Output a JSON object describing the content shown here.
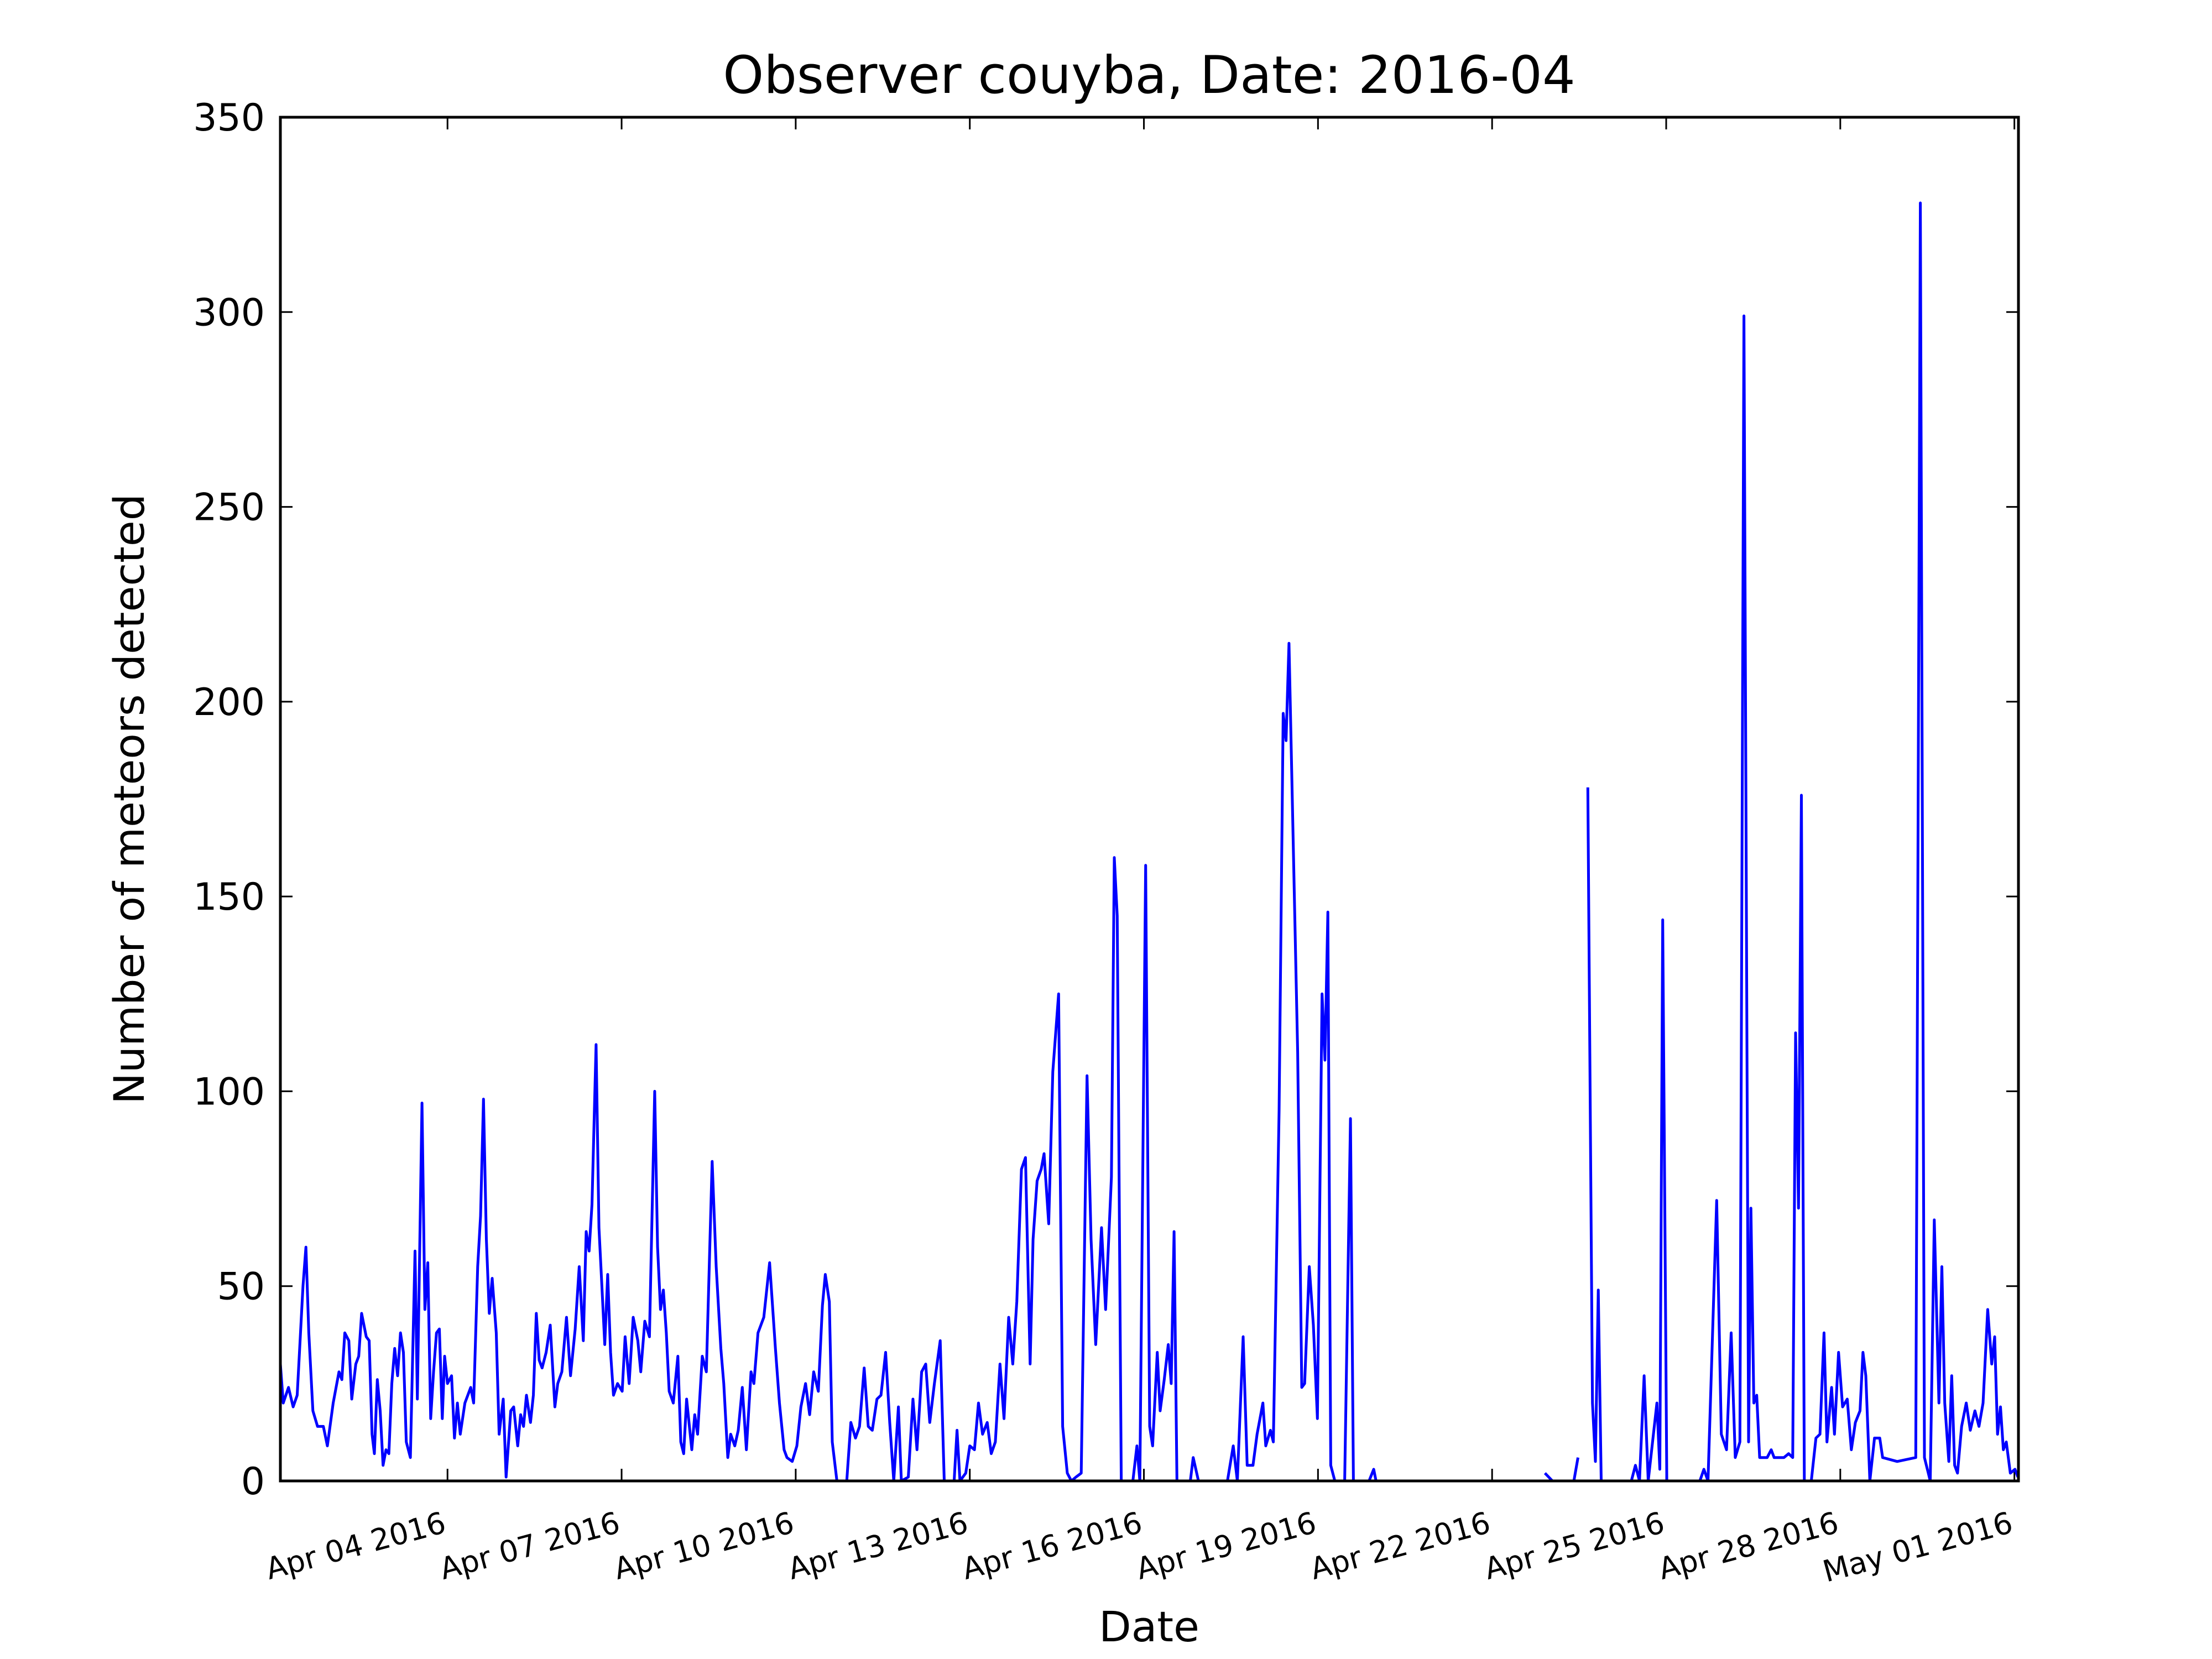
{
  "chart_data": {
    "type": "line",
    "title": "Observer couyba, Date: 2016-04",
    "xlabel": "Date",
    "ylabel": "Number of meteors detected",
    "color": "#0000ff",
    "xlim": [
      1.12,
      31.07
    ],
    "ylim": [
      0,
      350
    ],
    "xticks": [
      {
        "value": 4,
        "label": "Apr 04 2016"
      },
      {
        "value": 7,
        "label": "Apr 07 2016"
      },
      {
        "value": 10,
        "label": "Apr 10 2016"
      },
      {
        "value": 13,
        "label": "Apr 13 2016"
      },
      {
        "value": 16,
        "label": "Apr 16 2016"
      },
      {
        "value": 19,
        "label": "Apr 19 2016"
      },
      {
        "value": 22,
        "label": "Apr 22 2016"
      },
      {
        "value": 25,
        "label": "Apr 25 2016"
      },
      {
        "value": 28,
        "label": "Apr 28 2016"
      },
      {
        "value": 31,
        "label": "May 01 2016"
      }
    ],
    "yticks": [
      0,
      50,
      100,
      150,
      200,
      250,
      300,
      350
    ],
    "x": [
      1.12,
      1.17,
      1.26,
      1.34,
      1.41,
      1.51,
      1.56,
      1.61,
      1.68,
      1.76,
      1.86,
      1.93,
      2.03,
      2.13,
      2.18,
      2.23,
      2.3,
      2.35,
      2.42,
      2.47,
      2.52,
      2.6,
      2.65,
      2.7,
      2.74,
      2.79,
      2.84,
      2.89,
      2.94,
      2.99,
      3.04,
      3.09,
      3.14,
      3.19,
      3.24,
      3.29,
      3.36,
      3.44,
      3.48,
      3.56,
      3.61,
      3.66,
      3.71,
      3.76,
      3.81,
      3.86,
      3.91,
      3.95,
      4.0,
      4.07,
      4.12,
      4.17,
      4.22,
      4.3,
      4.4,
      4.45,
      4.52,
      4.57,
      4.62,
      4.67,
      4.72,
      4.77,
      4.84,
      4.89,
      4.96,
      5.01,
      5.09,
      5.14,
      5.21,
      5.26,
      5.31,
      5.36,
      5.43,
      5.48,
      5.53,
      5.58,
      5.63,
      5.7,
      5.77,
      5.85,
      5.9,
      5.97,
      6.05,
      6.12,
      6.2,
      6.27,
      6.34,
      6.39,
      6.44,
      6.49,
      6.56,
      6.61,
      6.66,
      6.71,
      6.76,
      6.81,
      6.86,
      6.93,
      7.01,
      7.06,
      7.13,
      7.2,
      7.28,
      7.33,
      7.4,
      7.48,
      7.57,
      7.62,
      7.67,
      7.72,
      7.77,
      7.82,
      7.89,
      7.97,
      8.02,
      8.07,
      8.12,
      8.21,
      8.26,
      8.31,
      8.39,
      8.46,
      8.56,
      8.63,
      8.71,
      8.76,
      8.83,
      8.88,
      8.95,
      9.01,
      9.08,
      9.15,
      9.23,
      9.28,
      9.35,
      9.45,
      9.55,
      9.65,
      9.72,
      9.8,
      9.85,
      9.94,
      10.02,
      10.09,
      10.17,
      10.24,
      10.31,
      10.39,
      10.46,
      10.51,
      10.58,
      10.63,
      10.71,
      10.88,
      10.95,
      11.03,
      11.1,
      11.18,
      11.25,
      11.32,
      11.4,
      11.47,
      11.55,
      11.62,
      11.69,
      11.77,
      11.82,
      11.94,
      12.02,
      12.09,
      12.17,
      12.24,
      12.31,
      12.39,
      12.49,
      12.56,
      12.73,
      12.78,
      12.83,
      12.93,
      13.0,
      13.08,
      13.15,
      13.22,
      13.3,
      13.37,
      13.44,
      13.52,
      13.59,
      13.67,
      13.74,
      13.81,
      13.89,
      13.96,
      14.04,
      14.09,
      14.16,
      14.23,
      14.28,
      14.36,
      14.43,
      14.53,
      14.6,
      14.68,
      14.75,
      14.83,
      14.92,
      15.02,
      15.09,
      15.17,
      15.27,
      15.34,
      15.44,
      15.49,
      15.54,
      15.61,
      15.81,
      15.88,
      15.93,
      16.03,
      16.1,
      16.15,
      16.23,
      16.28,
      16.35,
      16.42,
      16.47,
      16.52,
      16.57,
      16.8,
      16.85,
      16.94,
      17.44,
      17.54,
      17.61,
      17.71,
      17.78,
      17.88,
      17.95,
      18.05,
      18.1,
      18.18,
      18.23,
      18.33,
      18.4,
      18.45,
      18.5,
      18.65,
      18.72,
      18.77,
      18.85,
      18.92,
      18.99,
      19.07,
      19.12,
      19.17,
      19.22,
      19.29,
      19.46,
      19.56,
      19.61,
      19.88,
      19.96,
      20.0,
      20.89,
      22.0,
      22.91,
      23.04,
      23.41,
      23.48,
      23.56,
      23.65,
      23.73,
      23.78,
      23.83,
      23.88,
      24.4,
      24.47,
      24.54,
      24.62,
      24.69,
      24.84,
      24.89,
      24.94,
      25.01,
      25.58,
      25.65,
      25.72,
      25.87,
      25.95,
      26.04,
      26.12,
      26.19,
      26.27,
      26.34,
      26.42,
      26.46,
      26.51,
      26.56,
      26.61,
      26.74,
      26.81,
      26.86,
      27.03,
      27.11,
      27.18,
      27.23,
      27.28,
      27.33,
      27.38,
      27.5,
      27.58,
      27.65,
      27.72,
      27.77,
      27.85,
      27.9,
      27.97,
      28.04,
      28.12,
      28.19,
      28.26,
      28.34,
      28.39,
      28.44,
      28.51,
      28.59,
      28.68,
      28.73,
      28.98,
      29.3,
      29.38,
      29.45,
      29.55,
      29.62,
      29.7,
      29.75,
      29.8,
      29.87,
      29.92,
      29.97,
      30.02,
      30.09,
      30.17,
      30.24,
      30.32,
      30.39,
      30.46,
      30.54,
      30.61,
      30.66,
      30.71,
      30.76,
      30.81,
      30.86,
      30.93,
      31.01,
      31.06
    ],
    "values": [
      30,
      20,
      24,
      19,
      22,
      50,
      60,
      38,
      18,
      14,
      14,
      9,
      20,
      28,
      26,
      38,
      36,
      21,
      30,
      32,
      43,
      37,
      36,
      12,
      7,
      26,
      18,
      4,
      8,
      7,
      25,
      34,
      27,
      38,
      33,
      10,
      6,
      59,
      21,
      97,
      44,
      56,
      16,
      28,
      38,
      39,
      16,
      32,
      25,
      27,
      11,
      20,
      12,
      20,
      24,
      20,
      55,
      68,
      98,
      62,
      43,
      52,
      38,
      12,
      21,
      1,
      18,
      19,
      9,
      17,
      14,
      22,
      15,
      22,
      43,
      31,
      29,
      33,
      40,
      19,
      25,
      28,
      42,
      27,
      39,
      55,
      36,
      64,
      59,
      71,
      112,
      65,
      50,
      35,
      53,
      33,
      22,
      25,
      23,
      37,
      25,
      42,
      36,
      28,
      41,
      37,
      100,
      60,
      44,
      49,
      38,
      23,
      20,
      32,
      10,
      7,
      21,
      8,
      17,
      12,
      32,
      28,
      82,
      55,
      34,
      25,
      6,
      12,
      9,
      13,
      24,
      8,
      28,
      25,
      38,
      42,
      56,
      34,
      20,
      8,
      6,
      5,
      9,
      19,
      25,
      17,
      28,
      23,
      45,
      53,
      46,
      10,
      0,
      0,
      15,
      11,
      14,
      29,
      14,
      13,
      21,
      22,
      33,
      15,
      0,
      19,
      0,
      1,
      21,
      8,
      28,
      30,
      15,
      25,
      36,
      0,
      0,
      13,
      0,
      2,
      9,
      8,
      20,
      12,
      15,
      7,
      10,
      30,
      16,
      42,
      30,
      46,
      80,
      83,
      30,
      62,
      77,
      80,
      84,
      66,
      105,
      125,
      14,
      2,
      0,
      1,
      2,
      104,
      62,
      35,
      65,
      44,
      78,
      160,
      145,
      0,
      0,
      9,
      0,
      158,
      14,
      9,
      33,
      18,
      26,
      35,
      25,
      64,
      0,
      0,
      6,
      0,
      0,
      9,
      0,
      37,
      4,
      4,
      12,
      20,
      9,
      13,
      10,
      95,
      197,
      190,
      215,
      110,
      24,
      25,
      55,
      40,
      16,
      125,
      108,
      146,
      4,
      0,
      0,
      93,
      0,
      0,
      3,
      0,
      0,
      null,
      2,
      0,
      0,
      6,
      null,
      178,
      20,
      5,
      49,
      0,
      0,
      4,
      0,
      27,
      0,
      20,
      3,
      144,
      0,
      0,
      3,
      0,
      72,
      12,
      8,
      38,
      6,
      10,
      299,
      10,
      70,
      20,
      22,
      6,
      6,
      8,
      6,
      6,
      7,
      6,
      115,
      70,
      176,
      0,
      0,
      11,
      12,
      38,
      10,
      24,
      12,
      33,
      19,
      21,
      8,
      15,
      18,
      33,
      27,
      0,
      11,
      11,
      6,
      5,
      6,
      328,
      6,
      0,
      67,
      20,
      55,
      20,
      5,
      27,
      4,
      2,
      14,
      20,
      13,
      18,
      14,
      20,
      44,
      30,
      37,
      12,
      19,
      8,
      10,
      2,
      3,
      1
    ]
  }
}
